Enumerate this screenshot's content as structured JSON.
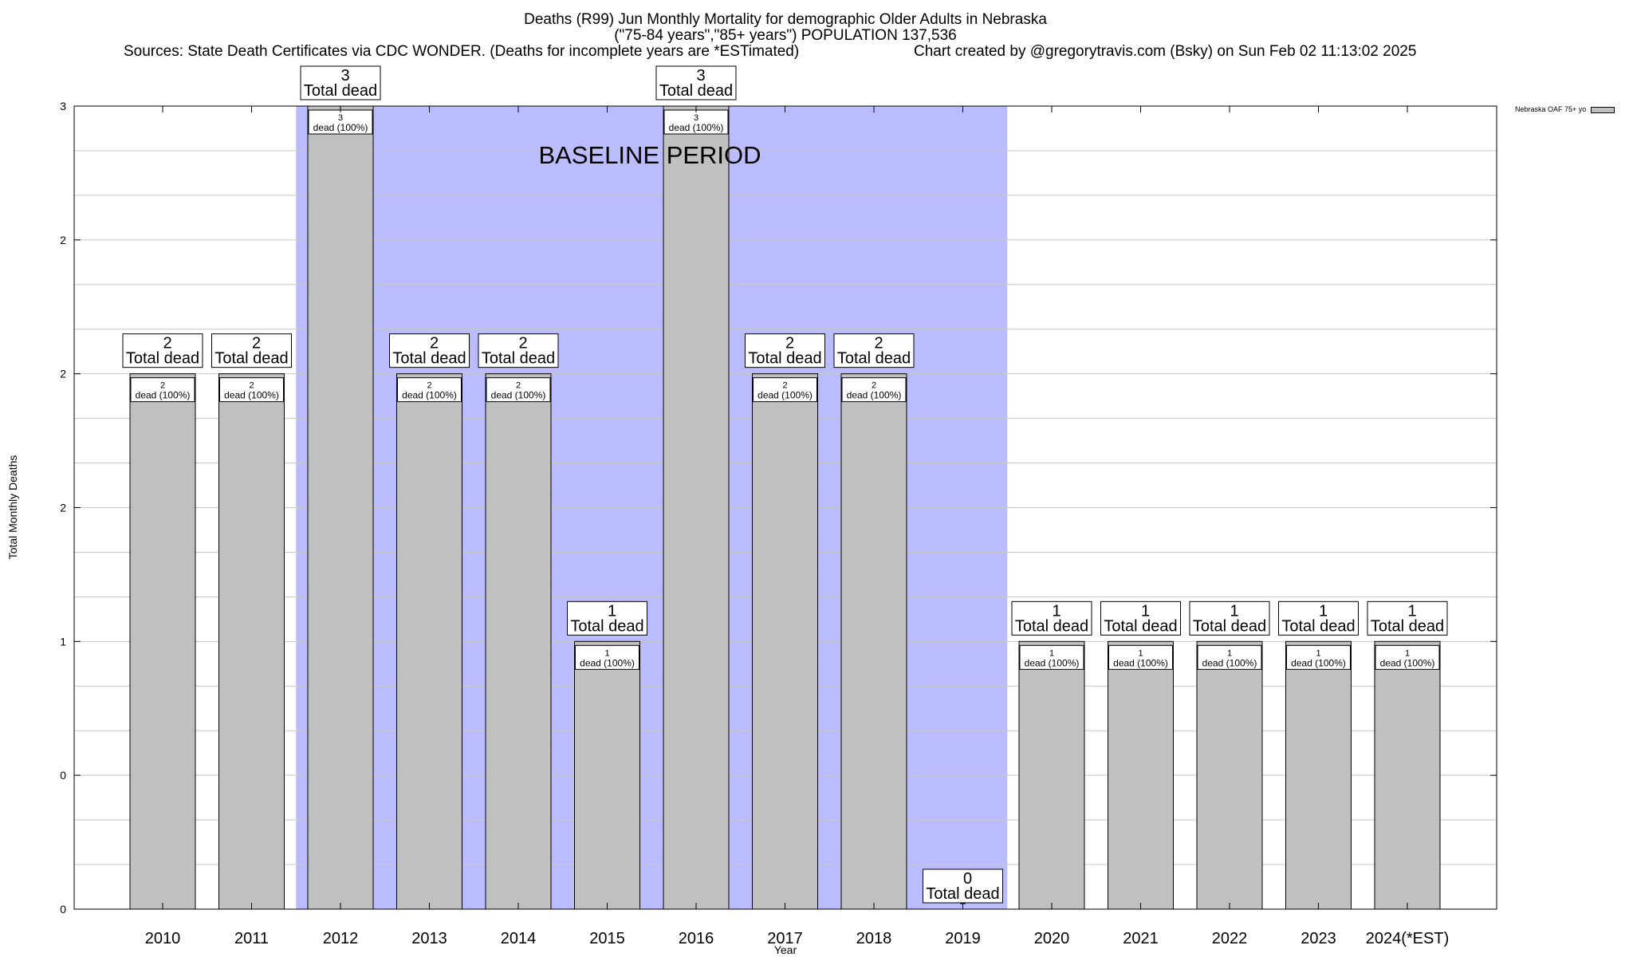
{
  "header": {
    "title": "Deaths (R99) Jun Monthly Mortality for demographic Older Adults in Nebraska",
    "subtitle": "(\"75-84 years\",\"85+ years\") POPULATION 137,536",
    "sources": "Sources: State Death Certificates via CDC WONDER. (Deaths for incomplete years are *ESTimated)",
    "credit": "Chart created by @gregorytravis.com (Bsky) on Sun Feb 02 11:13:02 2025"
  },
  "legend": {
    "label": "Nebraska OAF 75+ yo"
  },
  "chart_data": {
    "type": "bar",
    "title": "Deaths (R99) Jun Monthly Mortality for demographic Older Adults in Nebraska",
    "xlabel": "Year",
    "ylabel": "Total Monthly Deaths",
    "ylim": [
      0,
      3
    ],
    "yticks": [
      {
        "value": 0,
        "label": "0"
      },
      {
        "value": 0.5,
        "label": "0"
      },
      {
        "value": 1,
        "label": "1"
      },
      {
        "value": 1.5,
        "label": "2"
      },
      {
        "value": 2,
        "label": "2"
      },
      {
        "value": 2.5,
        "label": "2"
      },
      {
        "value": 3,
        "label": "3"
      }
    ],
    "categories": [
      "2010",
      "2011",
      "2012",
      "2013",
      "2014",
      "2015",
      "2016",
      "2017",
      "2018",
      "2019",
      "2020",
      "2021",
      "2022",
      "2023",
      "2024(*EST)"
    ],
    "values": [
      2,
      2,
      3,
      2,
      2,
      1,
      3,
      2,
      2,
      0,
      1,
      1,
      1,
      1,
      1
    ],
    "total_label": "Total dead",
    "inner_label": "dead (100%)",
    "baseline": {
      "label": "BASELINE PERIOD",
      "start": "2012",
      "end": "2019",
      "color": "#bbbbff"
    },
    "bar_color": "#c0c0c0",
    "grid": true,
    "legend_position": "top-right"
  }
}
